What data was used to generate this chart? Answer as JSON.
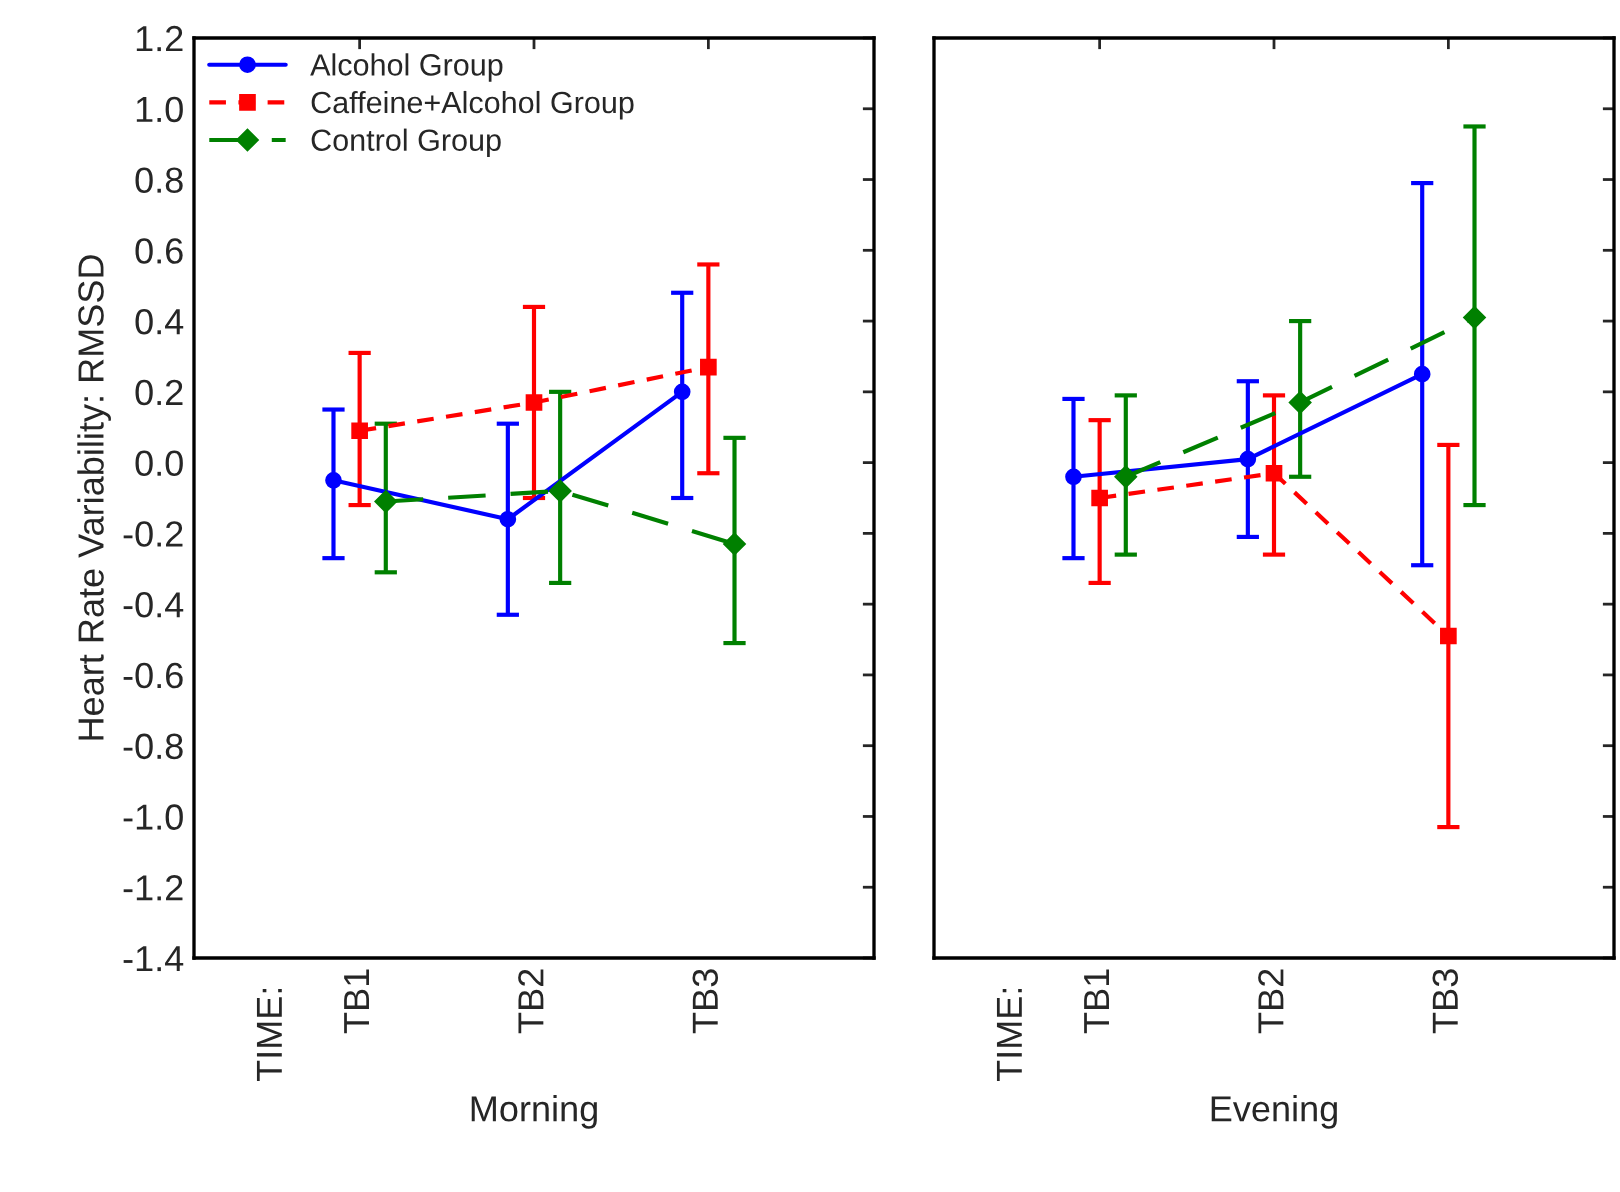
{
  "chart_data": [
    {
      "type": "line",
      "xlabel": "Morning",
      "ylabel": "Heart Rate Variability: RMSSD",
      "categories": [
        "TB1",
        "TB2",
        "TB3"
      ],
      "annotations": [
        "TIME:"
      ],
      "legend": "top left",
      "ylim": [
        -1.4,
        1.2
      ],
      "yticks": [
        {
          "value": -1.4,
          "label": "-1.4"
        },
        {
          "value": -1.2,
          "label": "-1.2"
        },
        {
          "value": -1.0,
          "label": "-1.0"
        },
        {
          "value": -0.8,
          "label": "-0.8"
        },
        {
          "value": -0.6,
          "label": "-0.6"
        },
        {
          "value": -0.4,
          "label": "-0.4"
        },
        {
          "value": -0.2,
          "label": "-0.2"
        },
        {
          "value": 0.0,
          "label": "0.0"
        },
        {
          "value": 0.2,
          "label": "0.2"
        },
        {
          "value": 0.4,
          "label": "0.4"
        },
        {
          "value": 0.6,
          "label": "0.6"
        },
        {
          "value": 0.8,
          "label": "0.8"
        },
        {
          "value": 1.0,
          "label": "1.0"
        },
        {
          "value": 1.2,
          "label": "1.2"
        }
      ],
      "series": [
        {
          "name": "Alcohol Group",
          "color": "#0000ff",
          "marker": "circle",
          "line_style": "solid",
          "values": [
            -0.05,
            -0.16,
            0.2
          ],
          "errors": [
            [
              -0.27,
              0.15
            ],
            [
              -0.43,
              0.11
            ],
            [
              -0.1,
              0.48
            ]
          ]
        },
        {
          "name": "Caffeine+Alcohol Group",
          "color": "#ff0000",
          "marker": "square",
          "line_style": "dashed",
          "values": [
            0.09,
            0.17,
            0.27
          ],
          "errors": [
            [
              -0.12,
              0.31
            ],
            [
              -0.1,
              0.44
            ],
            [
              -0.03,
              0.56
            ]
          ]
        },
        {
          "name": "Control Group",
          "color": "#008000",
          "marker": "diamond",
          "line_style": "dashed",
          "values": [
            -0.11,
            -0.08,
            -0.23
          ],
          "errors": [
            [
              -0.31,
              0.11
            ],
            [
              -0.34,
              0.2
            ],
            [
              -0.51,
              0.07
            ]
          ]
        }
      ]
    },
    {
      "type": "line",
      "xlabel": "Evening",
      "categories": [
        "TB1",
        "TB2",
        "TB3"
      ],
      "annotations": [
        "TIME:"
      ],
      "tick_labels": "x",
      "ylim": [
        -1.4,
        1.2
      ],
      "yticks": [
        {
          "value": -1.4,
          "label": null
        },
        {
          "value": -1.2,
          "label": null
        },
        {
          "value": -1.0,
          "label": null
        },
        {
          "value": -0.8,
          "label": null
        },
        {
          "value": -0.6,
          "label": null
        },
        {
          "value": -0.4,
          "label": null
        },
        {
          "value": -0.2,
          "label": null
        },
        {
          "value": 0.0,
          "label": null
        },
        {
          "value": 0.2,
          "label": null
        },
        {
          "value": 0.4,
          "label": null
        },
        {
          "value": 0.6,
          "label": null
        },
        {
          "value": 0.8,
          "label": null
        },
        {
          "value": 1.0,
          "label": null
        },
        {
          "value": 1.2,
          "label": null
        }
      ],
      "series": [
        {
          "color": "#0000ff",
          "marker": "circle",
          "line_style": "solid",
          "values": [
            -0.04,
            0.01,
            0.25
          ],
          "errors": [
            [
              -0.27,
              0.18
            ],
            [
              -0.21,
              0.23
            ],
            [
              -0.29,
              0.79
            ]
          ]
        },
        {
          "color": "#ff0000",
          "marker": "square",
          "line_style": "dashed",
          "values": [
            -0.1,
            -0.03,
            -0.49
          ],
          "errors": [
            [
              -0.34,
              0.12
            ],
            [
              -0.26,
              0.19
            ],
            [
              -1.03,
              0.05
            ]
          ]
        },
        {
          "color": "#008000",
          "marker": "diamond",
          "line_style": "dashed",
          "values": [
            -0.04,
            0.17,
            0.41
          ],
          "errors": [
            [
              -0.26,
              0.19
            ],
            [
              -0.04,
              0.4
            ],
            [
              -0.12,
              0.95
            ]
          ]
        }
      ]
    }
  ]
}
